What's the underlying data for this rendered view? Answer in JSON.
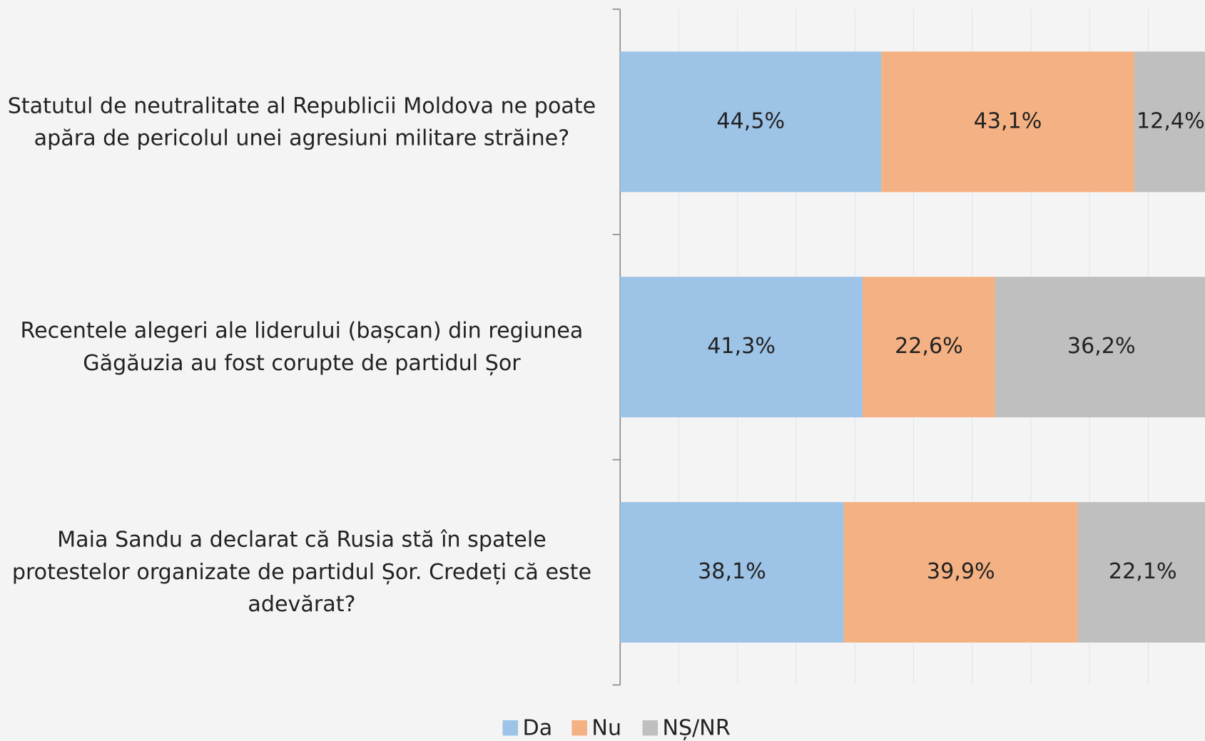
{
  "chart_data": {
    "type": "stacked-barh",
    "categories": [
      "Statutul de neutralitate al Republicii Moldova ne poate apăra de pericolul unei agresiuni militare străine?",
      "Recentele alegeri ale liderului (bașcan) din regiunea Găgăuzia au fost corupte de partidul Șor",
      "Maia Sandu a declarat că Rusia stă în spatele protestelor organizate de partidul Șor. Credeți că este adevărat?"
    ],
    "series": [
      {
        "name": "Da",
        "color": "#9dc3e6",
        "values": [
          44.5,
          41.3,
          38.1
        ],
        "value_labels": [
          "44,5%",
          "41,3%",
          "38,1%"
        ]
      },
      {
        "name": "Nu",
        "color": "#f4b183",
        "values": [
          43.1,
          22.6,
          39.9
        ],
        "value_labels": [
          "43,1%",
          "22,6%",
          "39,9%"
        ]
      },
      {
        "name": "NȘ/NR",
        "color": "#bfbfbf",
        "values": [
          12.4,
          36.2,
          22.1
        ],
        "value_labels": [
          "12,4%",
          "36,2%",
          "22,1%"
        ]
      }
    ],
    "xlim": [
      0,
      100
    ],
    "xticks": [
      0,
      10,
      20,
      30,
      40,
      50,
      60,
      70,
      80,
      90,
      100
    ],
    "grid": true,
    "legend": "bottom"
  }
}
